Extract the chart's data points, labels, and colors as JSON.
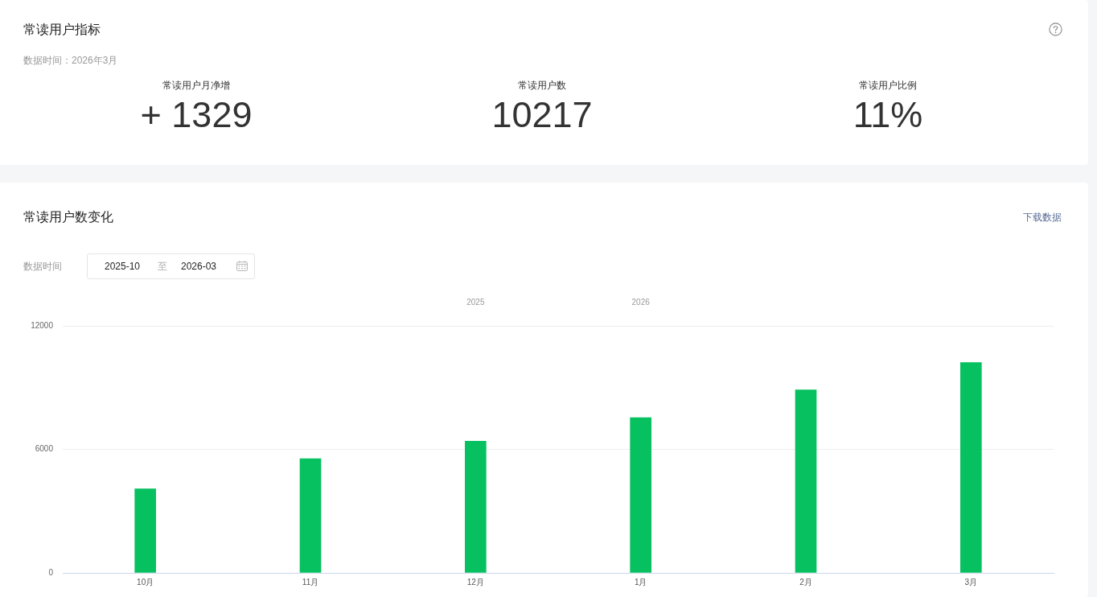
{
  "chart_data": [
    {
      "type": "other",
      "title": "常读用户指标",
      "subtitle": "数据时间：2026年3月",
      "annotations": [
        "常读用户月净增",
        "+ 1329",
        "常读用户数",
        "10217",
        "常读用户比例",
        "11%"
      ]
    },
    {
      "type": "bar",
      "title": "常读用户数变化",
      "annotations": [
        "下载数据",
        "数据时间",
        "2025-10",
        "至",
        "2026-03",
        "2025",
        "2026"
      ],
      "categories": [
        "10月",
        "11月",
        "12月",
        "1月",
        "2月",
        "3月"
      ],
      "values": [
        4080,
        5550,
        6400,
        7540,
        8890,
        10220
      ],
      "color": "#07c160",
      "ylim": [
        0,
        12000
      ],
      "yticks": [
        0,
        6000,
        12000
      ],
      "grid": "y"
    }
  ]
}
